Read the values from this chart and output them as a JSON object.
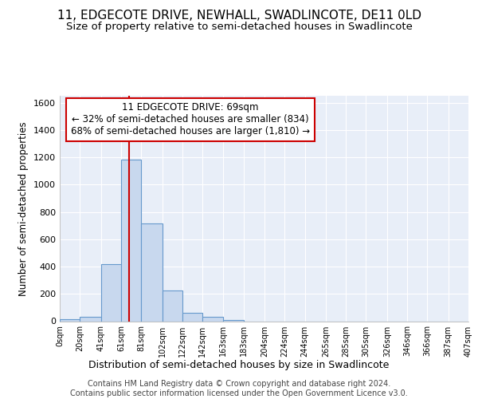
{
  "title": "11, EDGECOTE DRIVE, NEWHALL, SWADLINCOTE, DE11 0LD",
  "subtitle": "Size of property relative to semi-detached houses in Swadlincote",
  "xlabel": "Distribution of semi-detached houses by size in Swadlincote",
  "ylabel": "Number of semi-detached properties",
  "bin_edges": [
    0,
    20,
    41,
    61,
    81,
    102,
    122,
    142,
    163,
    183,
    204,
    224,
    244,
    265,
    285,
    305,
    326,
    346,
    366,
    387,
    407
  ],
  "bar_heights": [
    12,
    30,
    420,
    1180,
    715,
    225,
    60,
    30,
    10,
    0,
    0,
    0,
    0,
    0,
    0,
    0,
    0,
    0,
    0,
    0
  ],
  "bar_color": "#c8d8ee",
  "bar_edgecolor": "#6699cc",
  "bar_linewidth": 0.8,
  "property_size": 69,
  "property_line_color": "#cc0000",
  "annotation_text": "11 EDGECOTE DRIVE: 69sqm\n← 32% of semi-detached houses are smaller (834)\n68% of semi-detached houses are larger (1,810) →",
  "annotation_box_edgecolor": "#cc0000",
  "annotation_box_facecolor": "#ffffff",
  "ylim": [
    0,
    1650
  ],
  "yticks": [
    0,
    200,
    400,
    600,
    800,
    1000,
    1200,
    1400,
    1600
  ],
  "tick_labels": [
    "0sqm",
    "20sqm",
    "41sqm",
    "61sqm",
    "81sqm",
    "102sqm",
    "122sqm",
    "142sqm",
    "163sqm",
    "183sqm",
    "204sqm",
    "224sqm",
    "244sqm",
    "265sqm",
    "285sqm",
    "305sqm",
    "326sqm",
    "346sqm",
    "366sqm",
    "387sqm",
    "407sqm"
  ],
  "background_color": "#ffffff",
  "plot_background": "#e8eef8",
  "footer_line1": "Contains HM Land Registry data © Crown copyright and database right 2024.",
  "footer_line2": "Contains public sector information licensed under the Open Government Licence v3.0.",
  "title_fontsize": 11,
  "subtitle_fontsize": 9.5,
  "xlabel_fontsize": 9,
  "ylabel_fontsize": 8.5,
  "footer_fontsize": 7,
  "annotation_fontsize": 8.5
}
